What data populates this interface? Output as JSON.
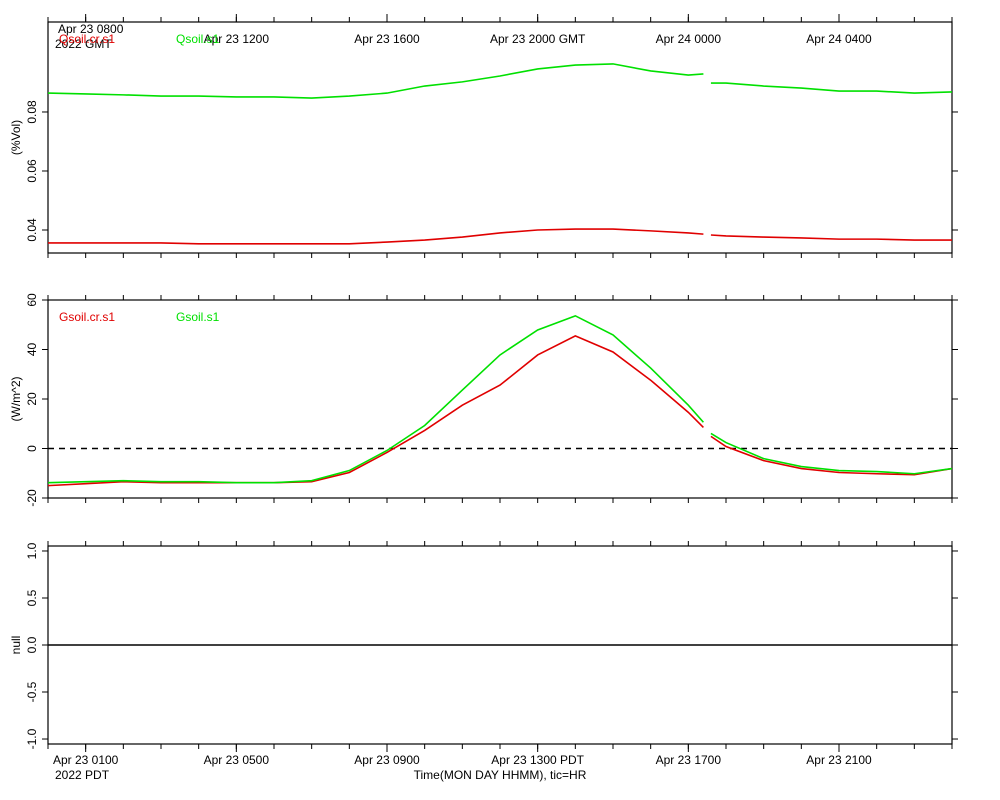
{
  "chart_data": [
    {
      "type": "line",
      "ylabel": "(%Vol)",
      "legend": "top-left",
      "xlim": [
        0,
        24
      ],
      "ylim": [
        0.0322,
        0.1105
      ],
      "yticks": [
        0.04,
        0.06,
        0.08
      ],
      "xminorticks": [
        0,
        1,
        2,
        3,
        4,
        5,
        6,
        7,
        8,
        9,
        10,
        11,
        12,
        13,
        14,
        15,
        16,
        17,
        18,
        19,
        20,
        21,
        22,
        23,
        24
      ],
      "x_top_ticks": [
        {
          "value": 1,
          "label": "Apr 23 0800"
        },
        {
          "value": 5,
          "label": "Apr 23 1200"
        },
        {
          "value": 9,
          "label": "Apr 23 1600"
        },
        {
          "value": 13,
          "label": "Apr 23 2000 GMT"
        },
        {
          "value": 17,
          "label": "Apr 24 0000"
        },
        {
          "value": 21,
          "label": "Apr 24 0400"
        }
      ],
      "top_year_label": "2022 GMT",
      "x": [
        0,
        1,
        2,
        3,
        4,
        5,
        6,
        7,
        8,
        9,
        10,
        11,
        12,
        13,
        14,
        15,
        16,
        17,
        17.4,
        17.5,
        17.6,
        18,
        19,
        20,
        21,
        22,
        23,
        24
      ],
      "series": [
        {
          "name": "Qsoil.cr.s1",
          "color": "#e00000",
          "values": [
            0.0356,
            0.0356,
            0.0356,
            0.0356,
            0.0353,
            0.0353,
            0.0353,
            0.0353,
            0.0353,
            0.0359,
            0.0366,
            0.0376,
            0.039,
            0.04,
            0.0403,
            0.0403,
            0.0397,
            0.039,
            0.0386,
            null,
            0.0383,
            0.038,
            0.0376,
            0.0373,
            0.0369,
            0.0369,
            0.0366,
            0.0366
          ]
        },
        {
          "name": "Qsoil.s1",
          "color": "#00e000",
          "values": [
            0.0864,
            0.0861,
            0.0858,
            0.0854,
            0.0854,
            0.0851,
            0.0851,
            0.0847,
            0.0854,
            0.0864,
            0.0888,
            0.0902,
            0.0922,
            0.0946,
            0.0959,
            0.0963,
            0.0939,
            0.0925,
            0.0929,
            null,
            0.0898,
            0.0898,
            0.0888,
            0.0881,
            0.0871,
            0.0871,
            0.0864,
            0.0868
          ]
        }
      ]
    },
    {
      "type": "line",
      "ylabel": "(W/m^2)",
      "legend": "top-left",
      "xlim": [
        0,
        24
      ],
      "ylim": [
        -20,
        60
      ],
      "yticks": [
        -20,
        0,
        20,
        40,
        60
      ],
      "reference_line": {
        "value": 0,
        "style": "dashed"
      },
      "x": [
        0,
        1,
        2,
        3,
        4,
        5,
        6,
        7,
        8,
        9,
        10,
        11,
        12,
        13,
        14,
        15,
        16,
        17,
        17.4,
        17.5,
        17.6,
        18,
        19,
        20,
        21,
        22,
        23,
        24
      ],
      "series": [
        {
          "name": "Gsoil.cr.s1",
          "color": "#e00000",
          "values": [
            -15.0,
            -14.2,
            -13.4,
            -13.8,
            -13.8,
            -13.8,
            -13.8,
            -13.4,
            -9.7,
            -1.6,
            7.3,
            17.5,
            25.6,
            37.8,
            45.5,
            39.0,
            27.6,
            14.6,
            8.5,
            null,
            4.9,
            0.8,
            -4.9,
            -8.1,
            -9.7,
            -10.2,
            -10.6,
            -8.1
          ]
        },
        {
          "name": "Gsoil.s1",
          "color": "#00e000",
          "values": [
            -13.8,
            -13.4,
            -13.0,
            -13.4,
            -13.4,
            -13.8,
            -13.8,
            -13.0,
            -8.9,
            -0.8,
            9.3,
            23.6,
            37.8,
            47.9,
            53.6,
            45.9,
            32.5,
            17.5,
            10.6,
            null,
            6.1,
            2.4,
            -4.1,
            -7.3,
            -8.9,
            -9.3,
            -10.2,
            -8.1
          ]
        }
      ]
    },
    {
      "type": "line",
      "ylabel": "null",
      "xlim": [
        0,
        24
      ],
      "ylim": [
        -1.053,
        1.053
      ],
      "yticks": [
        {
          "value": -1,
          "label": "-1.0"
        },
        {
          "value": -0.5,
          "label": "-0.5"
        },
        {
          "value": 0,
          "label": "0.0"
        },
        {
          "value": 0.5,
          "label": "0.5"
        },
        {
          "value": 1,
          "label": "1.0"
        }
      ],
      "reference_line": {
        "value": 0,
        "style": "solid"
      },
      "xticks": [
        {
          "value": 1,
          "label": "Apr 23 0100"
        },
        {
          "value": 5,
          "label": "Apr 23 0500"
        },
        {
          "value": 9,
          "label": "Apr 23 0900"
        },
        {
          "value": 13,
          "label": "Apr 23 1300 PDT"
        },
        {
          "value": 17,
          "label": "Apr 23 1700"
        },
        {
          "value": 21,
          "label": "Apr 23 2100"
        }
      ],
      "bottom_year_label": "2022 PDT",
      "xlabel": "Time(MON DAY HHMM), tic=HR",
      "series": []
    }
  ]
}
